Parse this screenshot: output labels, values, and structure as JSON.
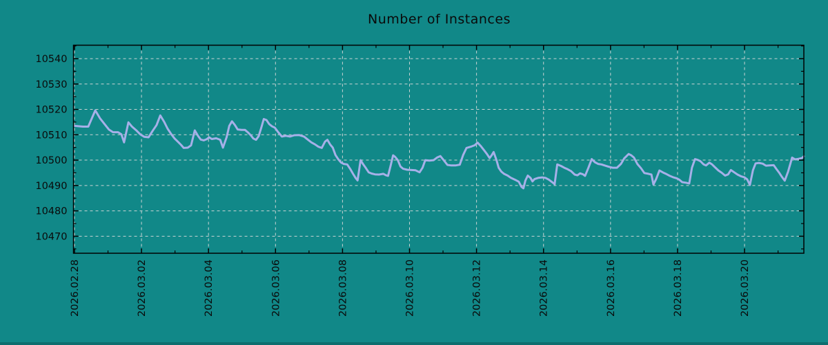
{
  "title": "Number of Instances",
  "colors": {
    "background": "#118888",
    "line": "#a6b0e8",
    "grid": "#ccd4d4",
    "axis": "#000000",
    "text": "#0a0a0a",
    "bottom_strip": "#0d6e6e"
  },
  "chart_data": {
    "type": "line",
    "title": "Number of Instances",
    "xlabel": "",
    "ylabel": "",
    "grid": true,
    "legend_position": "none",
    "x_start_date": "2026.02.28",
    "x_tick_labels": [
      "2026.02.28",
      "2026.03.02",
      "2026.03.04",
      "2026.03.06",
      "2026.03.08",
      "2026.03.10",
      "2026.03.12",
      "2026.03.14",
      "2026.03.16",
      "2026.03.18",
      "2026.03.20"
    ],
    "x_tick_days": [
      0,
      2,
      4,
      6,
      8,
      10,
      12,
      14,
      16,
      18,
      20
    ],
    "x_minor_days": [
      1,
      3,
      5,
      7,
      9,
      11,
      13,
      15,
      17,
      19,
      21
    ],
    "y_ticks": [
      10470,
      10480,
      10490,
      10500,
      10510,
      10520,
      10530,
      10540
    ],
    "y_minor_ticks": [
      10465,
      10475,
      10485,
      10495,
      10505,
      10515,
      10525,
      10535,
      10545
    ],
    "xlim_days": [
      -0.03,
      21.77
    ],
    "ylim": [
      10463.3,
      10545.3
    ],
    "series": [
      {
        "name": "instances",
        "points": [
          [
            0.0,
            10513.5
          ],
          [
            0.25,
            10513.2
          ],
          [
            0.41,
            10513.2
          ],
          [
            0.62,
            10519.6
          ],
          [
            0.76,
            10516.5
          ],
          [
            0.91,
            10514.0
          ],
          [
            1.03,
            10512.0
          ],
          [
            1.15,
            10511.0
          ],
          [
            1.3,
            10511.0
          ],
          [
            1.4,
            10510.2
          ],
          [
            1.48,
            10507.0
          ],
          [
            1.61,
            10514.9
          ],
          [
            1.71,
            10513.3
          ],
          [
            1.84,
            10511.8
          ],
          [
            1.96,
            10510.2
          ],
          [
            2.08,
            10509.2
          ],
          [
            2.21,
            10509.0
          ],
          [
            2.33,
            10511.5
          ],
          [
            2.45,
            10513.8
          ],
          [
            2.56,
            10517.6
          ],
          [
            2.68,
            10515.0
          ],
          [
            2.78,
            10512.4
          ],
          [
            2.89,
            10510.2
          ],
          [
            2.99,
            10508.5
          ],
          [
            3.09,
            10507.2
          ],
          [
            3.18,
            10506.0
          ],
          [
            3.26,
            10504.8
          ],
          [
            3.38,
            10504.9
          ],
          [
            3.48,
            10505.8
          ],
          [
            3.59,
            10511.7
          ],
          [
            3.69,
            10509.5
          ],
          [
            3.77,
            10508.1
          ],
          [
            3.86,
            10507.8
          ],
          [
            3.94,
            10508.2
          ],
          [
            4.02,
            10509.0
          ],
          [
            4.1,
            10508.3
          ],
          [
            4.23,
            10508.6
          ],
          [
            4.35,
            10508.0
          ],
          [
            4.43,
            10504.9
          ],
          [
            4.54,
            10509.0
          ],
          [
            4.62,
            10513.5
          ],
          [
            4.7,
            10515.3
          ],
          [
            4.79,
            10513.8
          ],
          [
            4.87,
            10512.1
          ],
          [
            4.99,
            10511.9
          ],
          [
            5.09,
            10511.9
          ],
          [
            5.17,
            10511.0
          ],
          [
            5.26,
            10509.8
          ],
          [
            5.34,
            10508.5
          ],
          [
            5.42,
            10508.0
          ],
          [
            5.5,
            10509.5
          ],
          [
            5.58,
            10513.0
          ],
          [
            5.65,
            10516.2
          ],
          [
            5.73,
            10515.8
          ],
          [
            5.81,
            10514.2
          ],
          [
            5.9,
            10513.3
          ],
          [
            5.98,
            10512.8
          ],
          [
            6.08,
            10511.0
          ],
          [
            6.19,
            10509.3
          ],
          [
            6.31,
            10509.6
          ],
          [
            6.43,
            10509.3
          ],
          [
            6.56,
            10509.8
          ],
          [
            6.7,
            10509.9
          ],
          [
            6.85,
            10509.3
          ],
          [
            6.97,
            10508.0
          ],
          [
            7.07,
            10507.0
          ],
          [
            7.18,
            10506.2
          ],
          [
            7.28,
            10505.3
          ],
          [
            7.38,
            10504.8
          ],
          [
            7.48,
            10507.3
          ],
          [
            7.55,
            10508.0
          ],
          [
            7.63,
            10506.2
          ],
          [
            7.71,
            10504.9
          ],
          [
            7.79,
            10502.0
          ],
          [
            7.88,
            10500.2
          ],
          [
            7.96,
            10499.0
          ],
          [
            8.04,
            10498.5
          ],
          [
            8.14,
            10498.3
          ],
          [
            8.23,
            10496.5
          ],
          [
            8.31,
            10494.7
          ],
          [
            8.39,
            10493.0
          ],
          [
            8.45,
            10492.0
          ],
          [
            8.54,
            10500.0
          ],
          [
            8.62,
            10498.3
          ],
          [
            8.7,
            10496.8
          ],
          [
            8.78,
            10495.2
          ],
          [
            8.87,
            10494.7
          ],
          [
            8.97,
            10494.4
          ],
          [
            9.09,
            10494.3
          ],
          [
            9.22,
            10494.6
          ],
          [
            9.3,
            10494.0
          ],
          [
            9.36,
            10493.8
          ],
          [
            9.44,
            10498.0
          ],
          [
            9.51,
            10501.9
          ],
          [
            9.57,
            10501.3
          ],
          [
            9.65,
            10500.0
          ],
          [
            9.73,
            10497.5
          ],
          [
            9.81,
            10496.6
          ],
          [
            9.93,
            10496.2
          ],
          [
            10.06,
            10496.1
          ],
          [
            10.18,
            10496.0
          ],
          [
            10.3,
            10495.2
          ],
          [
            10.39,
            10497.0
          ],
          [
            10.47,
            10500.0
          ],
          [
            10.59,
            10499.8
          ],
          [
            10.72,
            10500.0
          ],
          [
            10.82,
            10501.0
          ],
          [
            10.92,
            10501.6
          ],
          [
            11.02,
            10500.0
          ],
          [
            11.13,
            10498.1
          ],
          [
            11.25,
            10497.9
          ],
          [
            11.37,
            10497.9
          ],
          [
            11.5,
            10498.2
          ],
          [
            11.6,
            10502.0
          ],
          [
            11.7,
            10504.8
          ],
          [
            11.83,
            10505.3
          ],
          [
            11.95,
            10505.9
          ],
          [
            12.03,
            10506.9
          ],
          [
            12.13,
            10505.5
          ],
          [
            12.23,
            10503.8
          ],
          [
            12.31,
            10502.4
          ],
          [
            12.39,
            10500.8
          ],
          [
            12.45,
            10501.9
          ],
          [
            12.51,
            10503.2
          ],
          [
            12.6,
            10499.8
          ],
          [
            12.66,
            10497.0
          ],
          [
            12.74,
            10495.5
          ],
          [
            12.82,
            10494.6
          ],
          [
            12.93,
            10493.9
          ],
          [
            13.03,
            10493.0
          ],
          [
            13.16,
            10492.2
          ],
          [
            13.26,
            10491.5
          ],
          [
            13.34,
            10489.5
          ],
          [
            13.4,
            10488.9
          ],
          [
            13.46,
            10492.0
          ],
          [
            13.53,
            10493.9
          ],
          [
            13.61,
            10493.0
          ],
          [
            13.67,
            10491.6
          ],
          [
            13.73,
            10492.5
          ],
          [
            13.84,
            10493.0
          ],
          [
            13.96,
            10493.2
          ],
          [
            14.06,
            10493.0
          ],
          [
            14.16,
            10492.3
          ],
          [
            14.27,
            10491.2
          ],
          [
            14.33,
            10490.5
          ],
          [
            14.41,
            10498.3
          ],
          [
            14.52,
            10497.7
          ],
          [
            14.62,
            10497.0
          ],
          [
            14.72,
            10496.4
          ],
          [
            14.82,
            10495.7
          ],
          [
            14.93,
            10494.3
          ],
          [
            15.01,
            10494.0
          ],
          [
            15.09,
            10494.8
          ],
          [
            15.18,
            10494.4
          ],
          [
            15.24,
            10493.8
          ],
          [
            15.34,
            10497.0
          ],
          [
            15.44,
            10500.4
          ],
          [
            15.53,
            10499.2
          ],
          [
            15.63,
            10498.5
          ],
          [
            15.73,
            10498.3
          ],
          [
            15.84,
            10497.8
          ],
          [
            15.94,
            10497.4
          ],
          [
            16.06,
            10497.0
          ],
          [
            16.19,
            10497.0
          ],
          [
            16.31,
            10498.5
          ],
          [
            16.41,
            10500.7
          ],
          [
            16.54,
            10502.4
          ],
          [
            16.62,
            10501.9
          ],
          [
            16.7,
            10501.0
          ],
          [
            16.8,
            10498.5
          ],
          [
            16.91,
            10496.8
          ],
          [
            17.01,
            10494.9
          ],
          [
            17.13,
            10494.6
          ],
          [
            17.22,
            10494.3
          ],
          [
            17.28,
            10490.4
          ],
          [
            17.36,
            10492.5
          ],
          [
            17.46,
            10495.9
          ],
          [
            17.57,
            10495.1
          ],
          [
            17.67,
            10494.5
          ],
          [
            17.77,
            10493.8
          ],
          [
            17.88,
            10493.2
          ],
          [
            17.98,
            10492.8
          ],
          [
            18.06,
            10492.2
          ],
          [
            18.14,
            10491.3
          ],
          [
            18.25,
            10491.1
          ],
          [
            18.35,
            10490.8
          ],
          [
            18.43,
            10497.0
          ],
          [
            18.52,
            10500.4
          ],
          [
            18.6,
            10500.1
          ],
          [
            18.68,
            10499.6
          ],
          [
            18.78,
            10498.3
          ],
          [
            18.85,
            10497.9
          ],
          [
            18.95,
            10499.0
          ],
          [
            19.03,
            10498.3
          ],
          [
            19.11,
            10497.3
          ],
          [
            19.22,
            10495.9
          ],
          [
            19.32,
            10495.0
          ],
          [
            19.42,
            10493.9
          ],
          [
            19.51,
            10494.4
          ],
          [
            19.59,
            10496.1
          ],
          [
            19.69,
            10495.2
          ],
          [
            19.79,
            10494.3
          ],
          [
            19.9,
            10493.6
          ],
          [
            20.0,
            10493.2
          ],
          [
            20.08,
            10492.4
          ],
          [
            20.16,
            10490.2
          ],
          [
            20.25,
            10496.0
          ],
          [
            20.33,
            10498.7
          ],
          [
            20.43,
            10498.9
          ],
          [
            20.54,
            10498.6
          ],
          [
            20.64,
            10497.8
          ],
          [
            20.74,
            10497.9
          ],
          [
            20.87,
            10498.0
          ],
          [
            20.95,
            10496.5
          ],
          [
            21.03,
            10495.1
          ],
          [
            21.11,
            10493.5
          ],
          [
            21.2,
            10491.9
          ],
          [
            21.3,
            10495.5
          ],
          [
            21.42,
            10501.0
          ],
          [
            21.51,
            10500.3
          ],
          [
            21.61,
            10500.5
          ],
          [
            21.71,
            10500.8
          ],
          [
            21.77,
            10501.5
          ]
        ]
      }
    ]
  }
}
